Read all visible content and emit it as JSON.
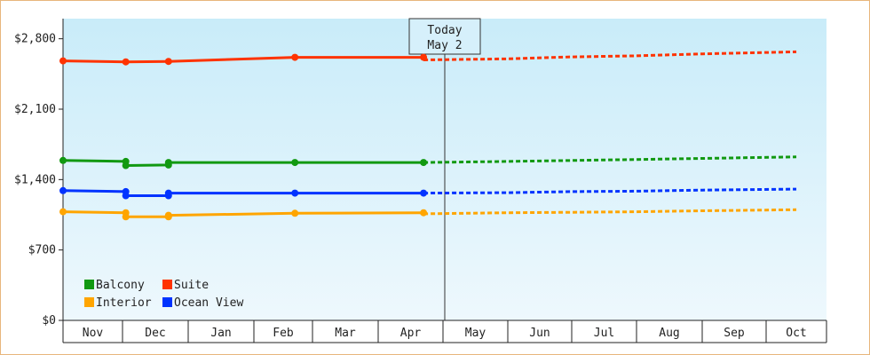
{
  "chart_data": {
    "type": "line",
    "title": "",
    "xlabel": "",
    "ylabel": "",
    "ylim": [
      0,
      3000
    ],
    "y_ticks": [
      {
        "value": 0,
        "label": "$0"
      },
      {
        "value": 700,
        "label": "$700"
      },
      {
        "value": 1400,
        "label": "$1,400"
      },
      {
        "value": 2100,
        "label": "$2,100"
      },
      {
        "value": 2800,
        "label": "$2,800"
      }
    ],
    "month_labels": [
      "Nov",
      "Dec",
      "Jan",
      "Feb",
      "Mar",
      "Apr",
      "May",
      "Jun",
      "Jul",
      "Aug",
      "Sep",
      "Oct"
    ],
    "today_marker": {
      "line1": "Today",
      "line2": "May 2"
    },
    "legend_position": "bottom-left",
    "background_gradient": [
      "#c9ecf9",
      "#eef8fd"
    ],
    "series": [
      {
        "name": "Suite",
        "color": "#ff3300",
        "actual": [
          [
            0,
            2580
          ],
          [
            1.05,
            2570
          ],
          [
            1.7,
            2575
          ],
          [
            3.7,
            2615
          ],
          [
            5.7,
            2615
          ]
        ],
        "forecast": [
          [
            5.7,
            2590
          ],
          [
            7,
            2600
          ],
          [
            8,
            2620
          ],
          [
            9,
            2630
          ],
          [
            10,
            2650
          ],
          [
            11.5,
            2670
          ]
        ]
      },
      {
        "name": "Balcony",
        "color": "#119911",
        "actual": [
          [
            0,
            1590
          ],
          [
            1.05,
            1580
          ],
          [
            1.05,
            1540
          ],
          [
            1.7,
            1545
          ],
          [
            1.7,
            1570
          ],
          [
            3.7,
            1570
          ],
          [
            5.7,
            1570
          ]
        ],
        "forecast": [
          [
            5.7,
            1570
          ],
          [
            7,
            1580
          ],
          [
            8,
            1590
          ],
          [
            9,
            1600
          ],
          [
            10,
            1610
          ],
          [
            11.5,
            1625
          ]
        ]
      },
      {
        "name": "Ocean View",
        "color": "#0033ff",
        "actual": [
          [
            0,
            1290
          ],
          [
            1.05,
            1280
          ],
          [
            1.05,
            1240
          ],
          [
            1.7,
            1240
          ],
          [
            1.7,
            1265
          ],
          [
            3.7,
            1265
          ],
          [
            5.7,
            1265
          ]
        ],
        "forecast": [
          [
            5.7,
            1265
          ],
          [
            7,
            1270
          ],
          [
            8,
            1280
          ],
          [
            9,
            1285
          ],
          [
            10,
            1295
          ],
          [
            11.5,
            1305
          ]
        ]
      },
      {
        "name": "Interior",
        "color": "#ffa500",
        "actual": [
          [
            0,
            1080
          ],
          [
            1.05,
            1070
          ],
          [
            1.05,
            1030
          ],
          [
            1.7,
            1030
          ],
          [
            1.7,
            1045
          ],
          [
            3.7,
            1065
          ],
          [
            5.7,
            1070
          ]
        ],
        "forecast": [
          [
            5.7,
            1060
          ],
          [
            7,
            1070
          ],
          [
            8,
            1075
          ],
          [
            9,
            1080
          ],
          [
            10,
            1090
          ],
          [
            11.5,
            1100
          ]
        ]
      }
    ]
  },
  "legend": [
    {
      "name": "Balcony",
      "color": "#119911"
    },
    {
      "name": "Suite",
      "color": "#ff3300"
    },
    {
      "name": "Interior",
      "color": "#ffa500"
    },
    {
      "name": "Ocean View",
      "color": "#0033ff"
    }
  ]
}
